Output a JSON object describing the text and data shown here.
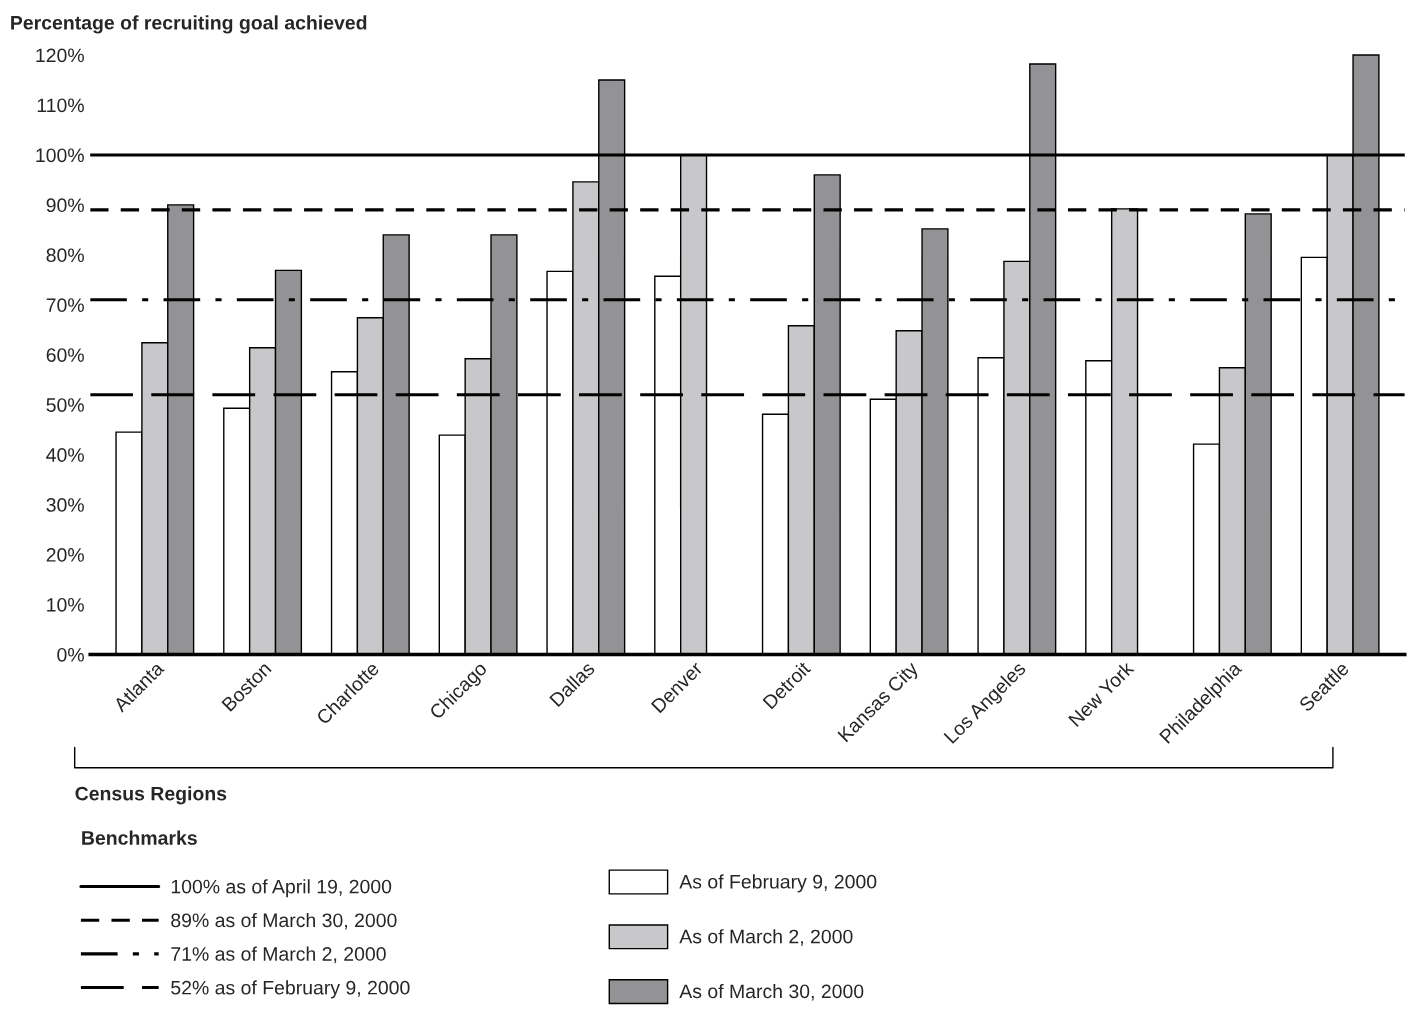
{
  "chart_data": {
    "type": "bar",
    "ylabel": "Percentage of recruiting goal achieved",
    "xlabel": "Census Regions",
    "legend_title": "Benchmarks",
    "categories": [
      "Atlanta",
      "Boston",
      "Charlotte",
      "Chicago",
      "Dallas",
      "Denver",
      "Detroit",
      "Kansas City",
      "Los Angeles",
      "New York",
      "Philadelphia",
      "Seattle"
    ],
    "series": [
      {
        "name": "As of February 9, 2000",
        "color": "#ffffff",
        "values": [
          44.5,
          49.3,
          56.6,
          43.9,
          76.7,
          75.7,
          48.1,
          51.1,
          59.4,
          58.8,
          42.1,
          79.5
        ]
      },
      {
        "name": "As of March 2, 2000",
        "color": "#c8c8ca",
        "values": [
          62.4,
          61.4,
          67.4,
          59.2,
          94.6,
          100,
          65.8,
          64.8,
          78.7,
          89.2,
          57.4,
          100
        ]
      },
      {
        "name": "As of March 30, 2000",
        "color": "#939396",
        "values": [
          90,
          76.9,
          84,
          84,
          115,
          null,
          96,
          85.2,
          118.2,
          null,
          88.2,
          120
        ]
      }
    ],
    "ref_lines": [
      {
        "axis": "y",
        "value": 100,
        "label": "100% as of April 19, 2000",
        "line_style": "solid"
      },
      {
        "axis": "y",
        "value": 89,
        "label": "89% as of March 30, 2000",
        "line_style": "dashed"
      },
      {
        "axis": "y",
        "value": 71,
        "label": "71% as of March 2, 2000",
        "line_style": "dashdot"
      },
      {
        "axis": "y",
        "value": 52,
        "label": "52% as of February 9, 2000",
        "line_style": "longdash"
      }
    ],
    "ylim": [
      0,
      121
    ],
    "yticks": [
      {
        "value": 0,
        "label": "0%"
      },
      {
        "value": 10,
        "label": "10%"
      },
      {
        "value": 20,
        "label": "20%"
      },
      {
        "value": 30,
        "label": "30%"
      },
      {
        "value": 40,
        "label": "40%"
      },
      {
        "value": 50,
        "label": "50%"
      },
      {
        "value": 60,
        "label": "60%"
      },
      {
        "value": 70,
        "label": "70%"
      },
      {
        "value": 80,
        "label": "80%"
      },
      {
        "value": 90,
        "label": "90%"
      },
      {
        "value": 100,
        "label": "100%"
      },
      {
        "value": 110,
        "label": "110%"
      },
      {
        "value": 120,
        "label": "120%"
      }
    ],
    "grid": false,
    "legend": "bottom"
  }
}
